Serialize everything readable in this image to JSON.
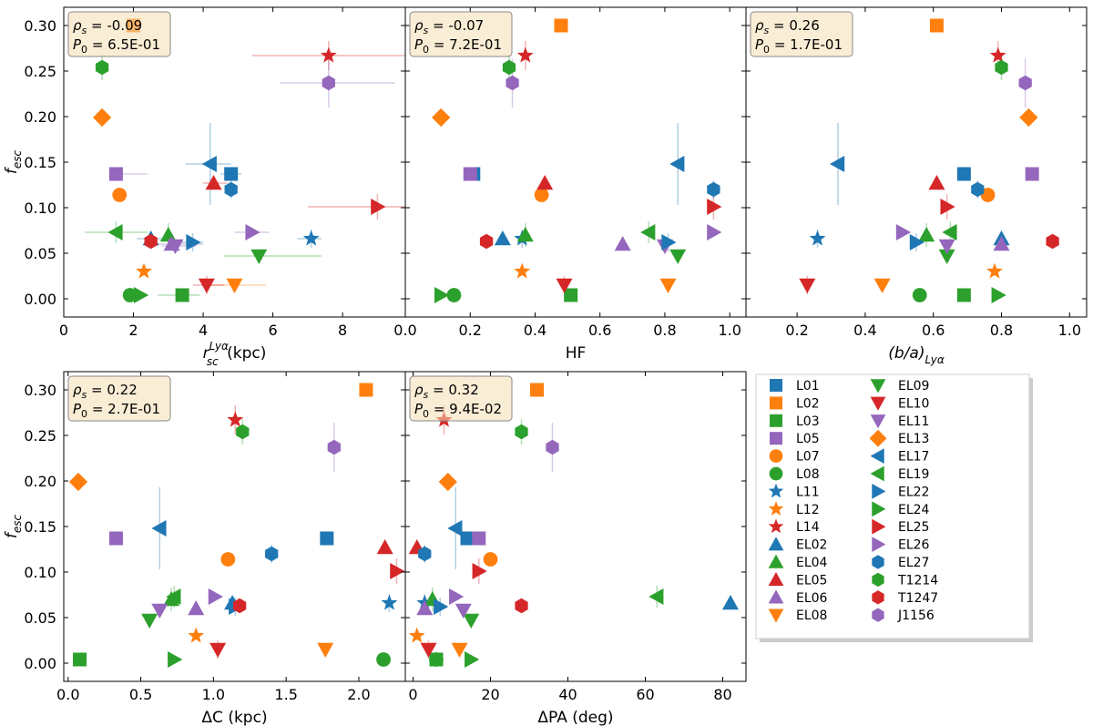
{
  "markers": {
    "L01": {
      "color": "#1f77b4",
      "shape": "square"
    },
    "L02": {
      "color": "#ff7f0e",
      "shape": "square"
    },
    "L03": {
      "color": "#2ca02c",
      "shape": "square"
    },
    "L05": {
      "color": "#9467bd",
      "shape": "square"
    },
    "L07": {
      "color": "#ff7f0e",
      "shape": "circle"
    },
    "L08": {
      "color": "#2ca02c",
      "shape": "circle"
    },
    "L11": {
      "color": "#1f77b4",
      "shape": "star"
    },
    "L12": {
      "color": "#ff7f0e",
      "shape": "star"
    },
    "L14": {
      "color": "#d62728",
      "shape": "star"
    },
    "EL02": {
      "color": "#1f77b4",
      "shape": "tri-up"
    },
    "EL04": {
      "color": "#2ca02c",
      "shape": "tri-up"
    },
    "EL05": {
      "color": "#d62728",
      "shape": "tri-up"
    },
    "EL06": {
      "color": "#9467bd",
      "shape": "tri-up"
    },
    "EL08": {
      "color": "#ff7f0e",
      "shape": "tri-down"
    },
    "EL09": {
      "color": "#2ca02c",
      "shape": "tri-down"
    },
    "EL10": {
      "color": "#d62728",
      "shape": "tri-down"
    },
    "EL11": {
      "color": "#9467bd",
      "shape": "tri-down"
    },
    "EL13": {
      "color": "#ff7f0e",
      "shape": "diamond"
    },
    "EL17": {
      "color": "#1f77b4",
      "shape": "tri-left"
    },
    "EL19": {
      "color": "#2ca02c",
      "shape": "tri-left"
    },
    "EL22": {
      "color": "#1f77b4",
      "shape": "tri-right"
    },
    "EL24": {
      "color": "#2ca02c",
      "shape": "tri-right"
    },
    "EL25": {
      "color": "#d62728",
      "shape": "tri-right"
    },
    "EL26": {
      "color": "#9467bd",
      "shape": "tri-right"
    },
    "EL27": {
      "color": "#1f77b4",
      "shape": "hexagon"
    },
    "T1214": {
      "color": "#2ca02c",
      "shape": "hexagon"
    },
    "T1247": {
      "color": "#d62728",
      "shape": "hexagon"
    },
    "J1156": {
      "color": "#9467bd",
      "shape": "hexagon"
    }
  },
  "legend_order": [
    "L01",
    "L02",
    "L03",
    "L05",
    "L07",
    "L08",
    "L11",
    "L12",
    "L14",
    "EL02",
    "EL04",
    "EL05",
    "EL06",
    "EL08",
    "EL09",
    "EL10",
    "EL11",
    "EL13",
    "EL17",
    "EL19",
    "EL22",
    "EL24",
    "EL25",
    "EL26",
    "EL27",
    "T1214",
    "T1247",
    "J1156"
  ],
  "fesc": {
    "L01": 0.137,
    "L02": 0.3,
    "L03": 0.004,
    "L05": 0.137,
    "L07": 0.114,
    "L08": 0.004,
    "L11": 0.066,
    "L12": 0.03,
    "L14": 0.267,
    "EL02": 0.066,
    "EL04": 0.07,
    "EL05": 0.127,
    "EL06": 0.06,
    "EL08": 0.015,
    "EL09": 0.047,
    "EL10": 0.015,
    "EL11": 0.058,
    "EL13": 0.199,
    "EL17": 0.148,
    "EL19": 0.073,
    "EL22": 0.062,
    "EL24": 0.004,
    "EL25": 0.101,
    "EL26": 0.073,
    "EL27": 0.12,
    "T1214": 0.254,
    "T1247": 0.063,
    "J1156": 0.237
  },
  "fesc_err": {
    "L14": 0.016,
    "EL17": 0.045,
    "T1214": 0.014,
    "J1156": 0.027,
    "EL19": 0.012,
    "EL04": 0.013,
    "L11": 0.01,
    "EL22": 0.01,
    "EL27": 0.01,
    "EL25": 0.014,
    "EL10": 0.01
  },
  "chart_data": [
    {
      "type": "scatter",
      "id": "p1",
      "xlabel_main": "r",
      "xlabel_sub": "sc",
      "xlabel_sup": "Lyα",
      "xlabel_tail": " (kpc)",
      "ylabel": "f",
      "ylabel_sub": "esc",
      "xlim": [
        0,
        9.8
      ],
      "ylim": [
        -0.02,
        0.32
      ],
      "xticks": [
        0,
        2,
        4,
        6,
        8
      ],
      "xtick_labels": [
        "0",
        "2",
        "4",
        "6",
        "8"
      ],
      "yticks": [
        0,
        0.05,
        0.1,
        0.15,
        0.2,
        0.25,
        0.3
      ],
      "ytick_labels": [
        "0.00",
        "0.05",
        "0.10",
        "0.15",
        "0.20",
        "0.25",
        "0.30"
      ],
      "show_ylabels": true,
      "rho": "ρ",
      "rho_sub": "s",
      "rho_val": " = -0.09",
      "p": "P",
      "p_sub": "0",
      "p_val": " = 6.5E-01",
      "x": {
        "L01": 4.8,
        "L02": 2.0,
        "L03": 3.4,
        "L05": 1.5,
        "L07": 1.6,
        "L08": 1.9,
        "L11": 7.1,
        "L12": 2.3,
        "L14": 7.6,
        "EL02": 2.5,
        "EL04": 3.0,
        "EL05": 4.3,
        "EL06": 3.1,
        "EL08": 4.9,
        "EL09": 5.6,
        "EL10": 4.1,
        "EL11": 3.2,
        "EL13": 1.1,
        "EL17": 4.2,
        "EL19": 1.5,
        "EL22": 3.7,
        "EL24": 2.2,
        "EL25": 9.0,
        "EL26": 5.4,
        "EL27": 4.8,
        "T1214": 1.1,
        "T1247": 2.5,
        "J1156": 7.6
      },
      "xerr": {
        "L14": [
          2.2,
          2.3
        ],
        "J1156": [
          1.4,
          1.9
        ],
        "EL25": [
          2.0,
          2.0
        ],
        "EL17": [
          0.7,
          0.6
        ],
        "L05": [
          0.2,
          0.9
        ],
        "EL19": [
          0.9,
          0.9
        ],
        "EL09": [
          1.0,
          1.8
        ],
        "EL06": [
          0.6,
          0.9
        ],
        "EL11": [
          0.4,
          0.6
        ],
        "EL26": [
          0.5,
          0.5
        ],
        "EL22": [
          0.4,
          0.3
        ],
        "L03": [
          0.7,
          0.5
        ],
        "EL10": [
          0.4,
          0.5
        ],
        "EL08": [
          0.9,
          0.9
        ],
        "L11": [
          0.4,
          0.3
        ],
        "EL05": [
          0.3,
          0.4
        ],
        "L01": [
          0.3,
          0.3
        ],
        "EL02": [
          0.4,
          0.4
        ]
      }
    },
    {
      "type": "scatter",
      "id": "p2",
      "xlabel_main": "HF",
      "xlabel_sub": "",
      "xlabel_sup": "",
      "xlabel_tail": "",
      "ylabel": "",
      "ylabel_sub": "",
      "xlim": [
        0,
        1.05
      ],
      "ylim": [
        -0.02,
        0.32
      ],
      "xticks": [
        0,
        0.2,
        0.4,
        0.6,
        0.8,
        1.0
      ],
      "xtick_labels": [
        "0.0",
        "0.2",
        "0.4",
        "0.6",
        "0.8",
        "1.0"
      ],
      "yticks": [
        0,
        0.05,
        0.1,
        0.15,
        0.2,
        0.25,
        0.3
      ],
      "ytick_labels": [],
      "show_ylabels": false,
      "rho": "ρ",
      "rho_sub": "s",
      "rho_val": " = -0.07",
      "p": "P",
      "p_sub": "0",
      "p_val": " = 7.2E-01",
      "x": {
        "L01": 0.21,
        "L02": 0.48,
        "L03": 0.51,
        "L05": 0.2,
        "L07": 0.42,
        "L08": 0.15,
        "L11": 0.36,
        "L12": 0.36,
        "L14": 0.37,
        "EL02": 0.3,
        "EL04": 0.37,
        "EL05": 0.43,
        "EL06": 0.67,
        "EL08": 0.81,
        "EL09": 0.84,
        "EL10": 0.49,
        "EL11": 0.8,
        "EL13": 0.11,
        "EL17": 0.84,
        "EL19": 0.75,
        "EL22": 0.81,
        "EL24": 0.11,
        "EL25": 0.95,
        "EL26": 0.95,
        "EL27": 0.95,
        "T1214": 0.32,
        "T1247": 0.25,
        "J1156": 0.33
      }
    },
    {
      "type": "scatter",
      "id": "p3",
      "xlabel_main": "(b/a)",
      "xlabel_sub": "Lyα",
      "xlabel_sup": "",
      "xlabel_tail": "",
      "ylabel": "",
      "ylabel_sub": "",
      "xlim": [
        0.05,
        1.05
      ],
      "ylim": [
        -0.02,
        0.32
      ],
      "xticks": [
        0.2,
        0.4,
        0.6,
        0.8,
        1.0
      ],
      "xtick_labels": [
        "0.2",
        "0.4",
        "0.6",
        "0.8",
        "1.0"
      ],
      "yticks": [
        0,
        0.05,
        0.1,
        0.15,
        0.2,
        0.25,
        0.3
      ],
      "ytick_labels": [],
      "show_ylabels": false,
      "rho": "ρ",
      "rho_sub": "s",
      "rho_val": " = 0.26",
      "p": "P",
      "p_sub": "0",
      "p_val": " = 1.7E-01",
      "x": {
        "L01": 0.69,
        "L02": 0.61,
        "L03": 0.69,
        "L05": 0.89,
        "L07": 0.76,
        "L08": 0.56,
        "L11": 0.26,
        "L12": 0.78,
        "L14": 0.79,
        "EL02": 0.8,
        "EL04": 0.58,
        "EL05": 0.61,
        "EL06": 0.8,
        "EL08": 0.45,
        "EL09": 0.64,
        "EL10": 0.23,
        "EL11": 0.64,
        "EL13": 0.88,
        "EL17": 0.32,
        "EL19": 0.65,
        "EL22": 0.55,
        "EL24": 0.79,
        "EL25": 0.64,
        "EL26": 0.51,
        "EL27": 0.73,
        "T1214": 0.8,
        "T1247": 0.95,
        "J1156": 0.87
      }
    },
    {
      "type": "scatter",
      "id": "p4",
      "xlabel_main": "ΔC (kpc)",
      "xlabel_sub": "",
      "xlabel_sup": "",
      "xlabel_tail": "",
      "ylabel": "f",
      "ylabel_sub": "esc",
      "xlim": [
        -0.03,
        2.32
      ],
      "ylim": [
        -0.02,
        0.32
      ],
      "xticks": [
        0,
        0.5,
        1.0,
        1.5,
        2.0
      ],
      "xtick_labels": [
        "0.0",
        "0.5",
        "1.0",
        "1.5",
        "2.0"
      ],
      "yticks": [
        0,
        0.05,
        0.1,
        0.15,
        0.2,
        0.25,
        0.3
      ],
      "ytick_labels": [
        "0.00",
        "0.05",
        "0.10",
        "0.15",
        "0.20",
        "0.25",
        "0.30"
      ],
      "show_ylabels": true,
      "rho": "ρ",
      "rho_sub": "s",
      "rho_val": " = 0.22",
      "p": "P",
      "p_sub": "0",
      "p_val": " = 2.7E-01",
      "x": {
        "L01": 1.78,
        "L02": 2.05,
        "L03": 0.08,
        "L05": 0.33,
        "L07": 1.1,
        "L08": 2.17,
        "L11": 2.21,
        "L12": 0.88,
        "L14": 1.15,
        "EL02": 1.13,
        "EL04": 0.71,
        "EL05": 2.18,
        "EL06": 0.88,
        "EL08": 1.77,
        "EL09": 0.56,
        "EL10": 1.03,
        "EL11": 0.63,
        "EL13": 0.07,
        "EL17": 0.63,
        "EL19": 0.73,
        "EL22": 1.15,
        "EL24": 0.73,
        "EL25": 2.26,
        "EL26": 1.01,
        "EL27": 1.4,
        "T1214": 1.2,
        "T1247": 1.18,
        "J1156": 1.83
      }
    },
    {
      "type": "scatter",
      "id": "p5",
      "xlabel_main": "ΔPA (deg)",
      "xlabel_sub": "",
      "xlabel_sup": "",
      "xlabel_tail": "",
      "ylabel": "",
      "ylabel_sub": "",
      "xlim": [
        -2,
        86
      ],
      "ylim": [
        -0.02,
        0.32
      ],
      "xticks": [
        0,
        20,
        40,
        60,
        80
      ],
      "xtick_labels": [
        "0",
        "20",
        "40",
        "60",
        "80"
      ],
      "yticks": [
        0,
        0.05,
        0.1,
        0.15,
        0.2,
        0.25,
        0.3
      ],
      "ytick_labels": [],
      "show_ylabels": false,
      "rho": "ρ",
      "rho_sub": "s",
      "rho_val": " = 0.32",
      "p": "P",
      "p_sub": "0",
      "p_val": " = 9.4E-02",
      "x": {
        "L01": 14,
        "L02": 32,
        "L03": 6,
        "L05": 17,
        "L07": 20,
        "L08": 6,
        "L11": 3,
        "L12": 1,
        "L14": 8,
        "EL02": 82,
        "EL04": 5,
        "EL05": 1,
        "EL06": 3,
        "EL08": 12,
        "EL09": 15,
        "EL10": 4,
        "EL11": 13,
        "EL13": 9,
        "EL17": 11,
        "EL19": 63,
        "EL22": 7,
        "EL24": 15,
        "EL25": 17,
        "EL26": 11,
        "EL27": 3,
        "T1214": 28,
        "T1247": 28,
        "J1156": 36
      }
    }
  ]
}
